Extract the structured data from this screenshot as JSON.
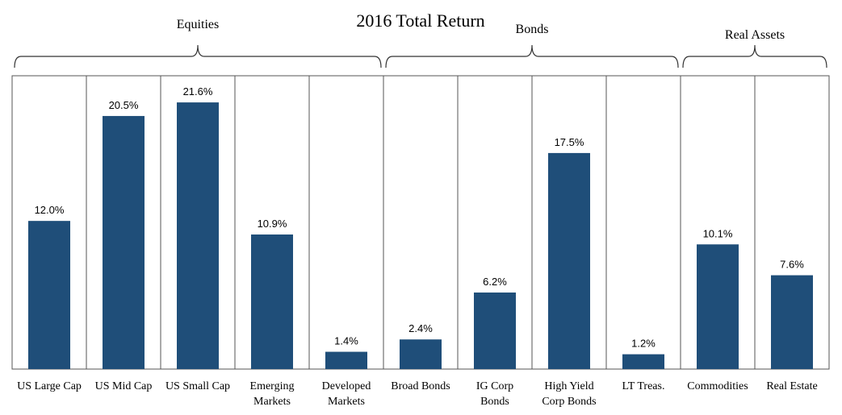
{
  "chart_data": {
    "type": "bar",
    "title": "2016 Total Return",
    "xlabel": "",
    "ylabel": "",
    "ylim": [
      0,
      25
    ],
    "grid": false,
    "bar_color": "#1F4E79",
    "groups": [
      {
        "name": "Equities",
        "start": 0,
        "end": 4
      },
      {
        "name": "Bonds",
        "start": 5,
        "end": 8
      },
      {
        "name": "Real Assets",
        "start": 9,
        "end": 10
      }
    ],
    "categories": [
      [
        "US Large Cap"
      ],
      [
        "US Mid Cap"
      ],
      [
        "US Small Cap"
      ],
      [
        "Emerging",
        "Markets"
      ],
      [
        "Developed",
        "Markets"
      ],
      [
        "Broad Bonds"
      ],
      [
        "IG Corp",
        "Bonds"
      ],
      [
        "High Yield",
        "Corp Bonds"
      ],
      [
        "LT Treas."
      ],
      [
        "Commodities"
      ],
      [
        "Real Estate"
      ]
    ],
    "values": [
      12.0,
      20.5,
      21.6,
      10.9,
      1.4,
      2.4,
      6.2,
      17.5,
      1.2,
      10.1,
      7.6
    ],
    "labels": [
      "12.0%",
      "20.5%",
      "21.6%",
      "10.9%",
      "1.4%",
      "2.4%",
      "6.2%",
      "17.5%",
      "1.2%",
      "10.1%",
      "7.6%"
    ]
  }
}
